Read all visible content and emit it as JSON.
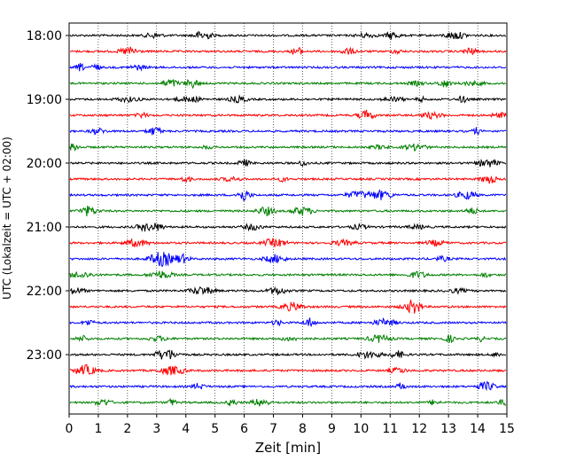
{
  "chart_data": {
    "type": "line",
    "title": "",
    "xlabel": "Zeit  [min]",
    "ylabel": "UTC (Lokalzeit = UTC + 02:00)",
    "xlim": [
      0,
      15
    ],
    "x_ticks": [
      "0",
      "1",
      "2",
      "3",
      "4",
      "5",
      "6",
      "7",
      "8",
      "9",
      "10",
      "11",
      "12",
      "13",
      "14",
      "15"
    ],
    "y_ticks": [
      "18:00",
      "19:00",
      "20:00",
      "21:00",
      "22:00",
      "23:00"
    ],
    "grid": "vertical dotted lines at each minute",
    "series_color_cycle": [
      "#000000",
      "#ff0000",
      "#0000ff",
      "#008000"
    ],
    "series": [
      {
        "start": "18:00",
        "color": "#000000"
      },
      {
        "start": "18:15",
        "color": "#ff0000"
      },
      {
        "start": "18:30",
        "color": "#0000ff"
      },
      {
        "start": "18:45",
        "color": "#008000"
      },
      {
        "start": "19:00",
        "color": "#000000"
      },
      {
        "start": "19:15",
        "color": "#ff0000"
      },
      {
        "start": "19:30",
        "color": "#0000ff"
      },
      {
        "start": "19:45",
        "color": "#008000"
      },
      {
        "start": "20:00",
        "color": "#000000"
      },
      {
        "start": "20:15",
        "color": "#ff0000"
      },
      {
        "start": "20:30",
        "color": "#0000ff"
      },
      {
        "start": "20:45",
        "color": "#008000"
      },
      {
        "start": "21:00",
        "color": "#000000"
      },
      {
        "start": "21:15",
        "color": "#ff0000"
      },
      {
        "start": "21:30",
        "color": "#0000ff"
      },
      {
        "start": "21:45",
        "color": "#008000"
      },
      {
        "start": "22:00",
        "color": "#000000"
      },
      {
        "start": "22:15",
        "color": "#ff0000"
      },
      {
        "start": "22:30",
        "color": "#0000ff"
      },
      {
        "start": "22:45",
        "color": "#008000"
      },
      {
        "start": "23:00",
        "color": "#000000"
      },
      {
        "start": "23:15",
        "color": "#ff0000"
      },
      {
        "start": "23:30",
        "color": "#0000ff"
      },
      {
        "start": "23:45",
        "color": "#008000"
      }
    ]
  }
}
